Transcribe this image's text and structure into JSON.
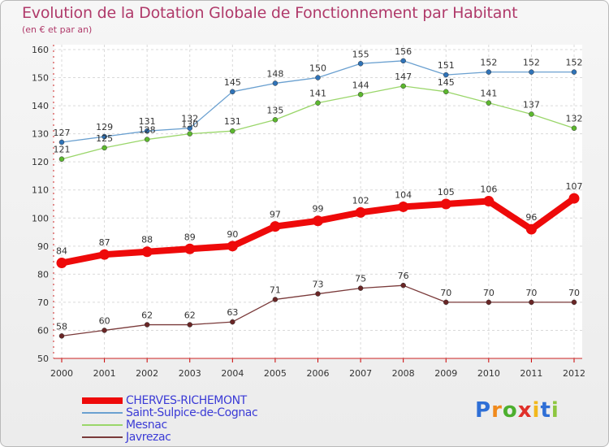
{
  "header": {
    "title": "Evolution de la Dotation Globale de Fonctionnement par Habitant",
    "subtitle": "(en € et par an)"
  },
  "logo": {
    "letters": [
      "P",
      "r",
      "o",
      "x",
      "i",
      "t",
      "i"
    ],
    "colors": [
      "#2f6fd6",
      "#f08a1c",
      "#4caf2e",
      "#e0302a",
      "#f2b81c",
      "#2f6fd6",
      "#8dc63f"
    ]
  },
  "chart_data": {
    "type": "line",
    "title": "Evolution de la Dotation Globale de Fonctionnement par Habitant",
    "subtitle": "(en € et par an)",
    "x": [
      "2000",
      "2001",
      "2002",
      "2003",
      "2004",
      "2005",
      "2006",
      "2007",
      "2008",
      "2009",
      "2010",
      "2011",
      "2012"
    ],
    "ylim": [
      50,
      160
    ],
    "yticks": [
      "50",
      "60",
      "70",
      "80",
      "90",
      "100",
      "110",
      "120",
      "130",
      "140",
      "150",
      "160"
    ],
    "grid": true,
    "legend_position": "bottom-left",
    "series": [
      {
        "name": "Saint-Sulpice-de-Cognac",
        "color": "#6aa0d0",
        "marker": "#2f73b8",
        "emphasis": false,
        "values": [
          127,
          129,
          131,
          132,
          145,
          148,
          150,
          155,
          156,
          151,
          152,
          152,
          152
        ],
        "labels": [
          "127",
          "129",
          "131",
          "132",
          "145",
          "148",
          "150",
          "155",
          "156",
          "151",
          "152",
          "152",
          "152"
        ]
      },
      {
        "name": "Mesnac",
        "color": "#9ad66a",
        "marker": "#5cb82e",
        "emphasis": false,
        "values": [
          121,
          125,
          128,
          130,
          131,
          135,
          141,
          144,
          147,
          145,
          141,
          137,
          132
        ],
        "labels": [
          "121",
          "125",
          "128",
          "130",
          "131",
          "135",
          "141",
          "144",
          "147",
          "145",
          "141",
          "137",
          "132"
        ]
      },
      {
        "name": "Javrezac",
        "color": "#7a3a3a",
        "marker": "#6a2626",
        "emphasis": false,
        "values": [
          58,
          60,
          62,
          62,
          63,
          71,
          73,
          75,
          76,
          70,
          70,
          70,
          70
        ],
        "labels": [
          "58",
          "60",
          "62",
          "62",
          "63",
          "71",
          "73",
          "75",
          "76",
          "70",
          "70",
          "70",
          "70"
        ]
      },
      {
        "name": "CHERVES-RICHEMONT",
        "color": "#ee0a0a",
        "marker": "#ee0a0a",
        "emphasis": true,
        "values": [
          84,
          87,
          88,
          89,
          90,
          97,
          99,
          102,
          104,
          105,
          106,
          96,
          107
        ],
        "labels": [
          "84",
          "87",
          "88",
          "89",
          "90",
          "97",
          "99",
          "102",
          "104",
          "105",
          "106",
          "96",
          "107"
        ]
      }
    ],
    "legend_order": [
      3,
      0,
      1,
      2
    ]
  }
}
